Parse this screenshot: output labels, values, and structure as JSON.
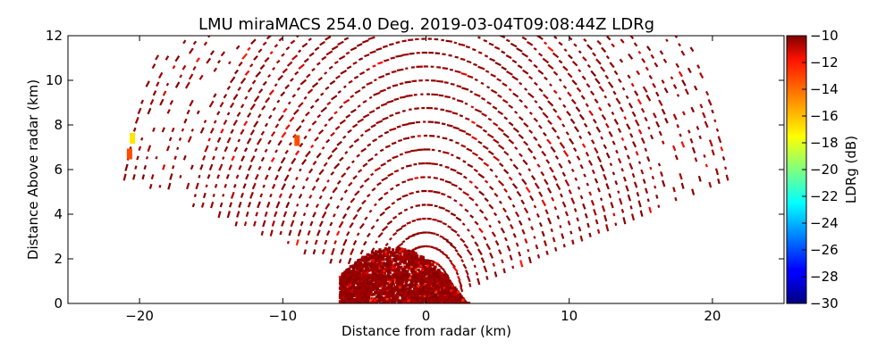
{
  "chart_data": {
    "type": "heatmap",
    "title": "LMU miraMACS 254.0 Deg. 2019-03-04T09:08:44Z  LDRg",
    "xlabel": "Distance from radar (km)",
    "ylabel": "Distance Above radar  (km)",
    "xlim": [
      -25,
      25
    ],
    "ylim": [
      0,
      12
    ],
    "xticks": [
      -20,
      -10,
      0,
      10,
      20
    ],
    "xtick_labels": [
      "−20",
      "−10",
      "0",
      "10",
      "20"
    ],
    "yticks": [
      0,
      2,
      4,
      6,
      8,
      10,
      12
    ],
    "ytick_labels": [
      "0",
      "2",
      "4",
      "6",
      "8",
      "10",
      "12"
    ],
    "grid": false,
    "scan": {
      "elevation_min_deg": 15,
      "elevation_max_deg": 165,
      "max_range_km": 22,
      "dominant_ldr_db": -10,
      "dense_core_x_km": [
        -6,
        3
      ],
      "dense_core_y_km": [
        0,
        2.5
      ],
      "enhanced_ldr_patches": [
        {
          "x_km": -20.5,
          "y_km": 7.4,
          "ldr_db": -17
        },
        {
          "x_km": -20.7,
          "y_km": 6.7,
          "ldr_db": -14
        },
        {
          "x_km": -9.0,
          "y_km": 7.3,
          "ldr_db": -14
        }
      ]
    },
    "colorbar": {
      "label": "LDRg (dB)",
      "range": [
        -30,
        -10
      ],
      "ticks": [
        -10,
        -12,
        -14,
        -16,
        -18,
        -20,
        -22,
        -24,
        -26,
        -28,
        -30
      ],
      "tick_labels": [
        "−10",
        "−12",
        "−14",
        "−16",
        "−18",
        "−20",
        "−22",
        "−24",
        "−26",
        "−28",
        "−30"
      ],
      "colormap": "jet"
    }
  }
}
